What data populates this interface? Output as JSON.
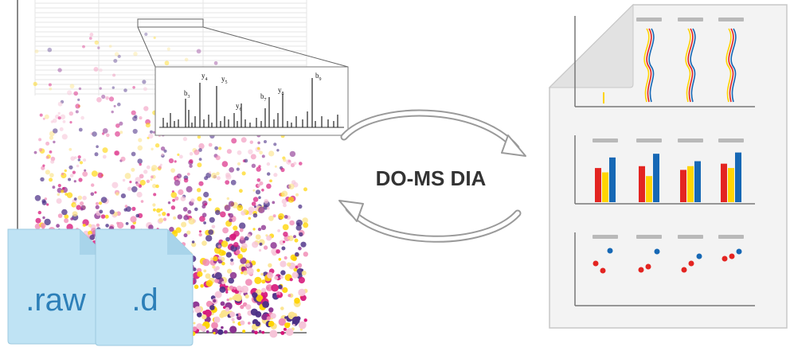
{
  "diagram": {
    "title": "DO-MS DIA",
    "files": [
      {
        "label": ".raw"
      },
      {
        "label": ".d"
      }
    ],
    "spectrum_ions": [
      {
        "label": "b",
        "sub": "3"
      },
      {
        "label": "y",
        "sub": "4"
      },
      {
        "label": "y",
        "sub": "5"
      },
      {
        "label": "y",
        "sub": "6"
      },
      {
        "label": "b",
        "sub": "7"
      },
      {
        "label": "y",
        "sub": "8"
      },
      {
        "label": "b",
        "sub": "9"
      }
    ],
    "colors": {
      "red": "#e32421",
      "yellow": "#ffd400",
      "blue": "#1668b5",
      "magenta": "#d6157a",
      "purple": "#4b2f86",
      "file_fill": "#bfe3f4",
      "file_text": "#2c7fb8",
      "report_bg": "#f3f3f3",
      "arrow": "#9a9a9a"
    },
    "report_bars": [
      [
        0.55,
        0.48,
        0.72
      ],
      [
        0.58,
        0.42,
        0.78
      ],
      [
        0.52,
        0.58,
        0.66
      ],
      [
        0.62,
        0.55,
        0.8
      ]
    ]
  }
}
